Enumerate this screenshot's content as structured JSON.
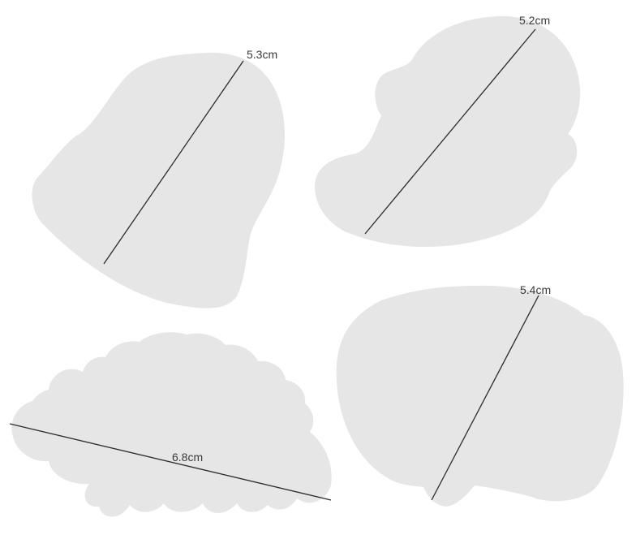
{
  "shapes": [
    {
      "shape": "bell",
      "label": "5.3cm"
    },
    {
      "shape": "ghost",
      "label": "5.2cm"
    },
    {
      "shape": "cloud",
      "label": "6.8cm"
    },
    {
      "shape": "speech-bubble",
      "label": "5.4cm"
    }
  ],
  "colors": {
    "shape_fill": "#e6e6e6",
    "line": "#2b2b2b",
    "label": "#3a3a3a"
  }
}
